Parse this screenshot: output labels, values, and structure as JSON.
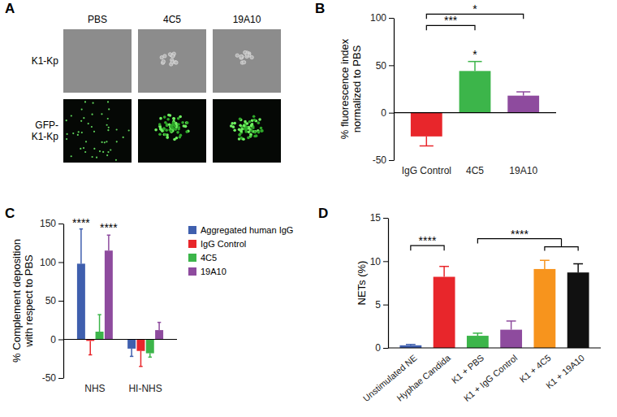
{
  "panel_a": {
    "letter": "A",
    "columns": [
      "PBS",
      "4C5",
      "19A10"
    ],
    "rows": [
      [
        "K1-Kp"
      ],
      [
        "GFP-",
        "K1-Kp"
      ]
    ]
  },
  "chart_data": [
    {
      "panel": "B",
      "type": "bar",
      "ylabel": [
        "% fluorescence index",
        "normalized to PBS"
      ],
      "categories": [
        "IgG Control",
        "4C5",
        "19A10"
      ],
      "values": [
        -25,
        44,
        18
      ],
      "errors": [
        10,
        10,
        4
      ],
      "colors": [
        "#e8262b",
        "#3cb54a",
        "#8e4b9e"
      ],
      "ylim": [
        -50,
        100
      ],
      "yticks": [
        -50,
        0,
        50,
        100
      ],
      "annotations": [
        {
          "text": "***",
          "from": 0,
          "to": 1,
          "y": 92
        },
        {
          "text": "*",
          "from": 0,
          "to": 2,
          "y": 104
        },
        {
          "text": "*",
          "at": 1,
          "y": 57
        }
      ]
    },
    {
      "panel": "C",
      "type": "bar",
      "ylabel": [
        "% Complement deposition",
        "with respect to PBS"
      ],
      "categories": [
        "NHS",
        "HI-NHS"
      ],
      "series": [
        {
          "name": "Aggregated human IgG",
          "color": "#3f5fae",
          "values": [
            98,
            -12
          ],
          "errors": [
            45,
            10
          ]
        },
        {
          "name": "IgG Control",
          "color": "#e8262b",
          "values": [
            -2,
            -15
          ],
          "errors": [
            18,
            20
          ]
        },
        {
          "name": "4C5",
          "color": "#3cb54a",
          "values": [
            10,
            -18
          ],
          "errors": [
            22,
            5
          ]
        },
        {
          "name": "19A10",
          "color": "#8e4b9e",
          "values": [
            115,
            12
          ],
          "errors": [
            20,
            10
          ]
        }
      ],
      "ylim": [
        -50,
        150
      ],
      "yticks": [
        -50,
        0,
        50,
        100,
        150
      ],
      "legend": "right",
      "annotations": [
        {
          "text": "****",
          "at": 0,
          "series": 0,
          "y": 146
        },
        {
          "text": "****",
          "at": 0,
          "series": 3,
          "y": 139
        }
      ]
    },
    {
      "panel": "D",
      "type": "bar",
      "ylabel": "NETs (%)",
      "categories": [
        "Unstimulated NE",
        "Hyphae Candida",
        "K1 + PBS",
        "K1 + IgG Control",
        "K1 + 4C5",
        "K1 + 19A10"
      ],
      "values": [
        0.3,
        8.2,
        1.4,
        2.1,
        9.1,
        8.7
      ],
      "errors": [
        0.1,
        1.2,
        0.3,
        1.0,
        1.0,
        1.0
      ],
      "colors": [
        "#3f5fae",
        "#e8262b",
        "#3cb54a",
        "#8e4b9e",
        "#f7941d",
        "#111111"
      ],
      "ylim": [
        0,
        15
      ],
      "yticks": [
        0,
        5,
        10,
        15
      ],
      "annotations": [
        {
          "text": "****",
          "from": 0,
          "to": 1,
          "y": 11.8
        },
        {
          "text": "****",
          "from": 2,
          "to": [
            4,
            5
          ],
          "y": 12.6
        }
      ]
    }
  ]
}
